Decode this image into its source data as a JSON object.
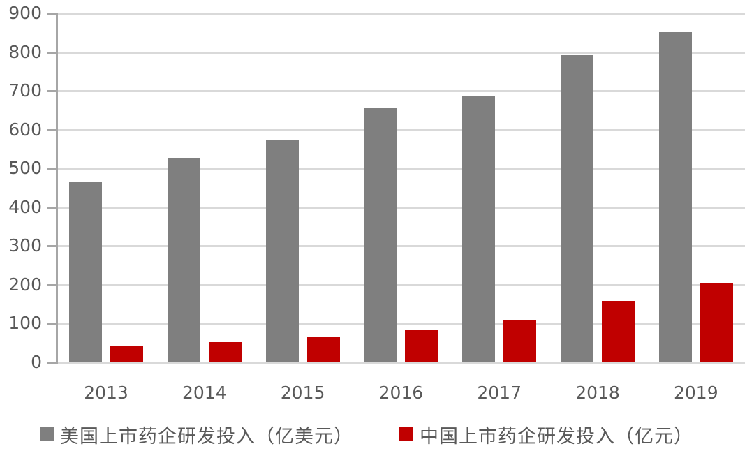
{
  "chart_data": {
    "type": "bar",
    "title": "",
    "xlabel": "",
    "ylabel": "",
    "categories": [
      "2013",
      "2014",
      "2015",
      "2016",
      "2017",
      "2018",
      "2019"
    ],
    "series": [
      {
        "name": "美国上市药企研发投入（亿美元）",
        "color": "#7f7f7f",
        "values": [
          466,
          528,
          575,
          655,
          685,
          792,
          851
        ]
      },
      {
        "name": "中国上市药企研发投入（亿元）",
        "color": "#c00000",
        "values": [
          43,
          52,
          64,
          82,
          109,
          159,
          205
        ]
      }
    ],
    "ylim": [
      0,
      900
    ],
    "yticks": [
      "0",
      "100",
      "200",
      "300",
      "400",
      "500",
      "600",
      "700",
      "800",
      "900"
    ],
    "grid": true,
    "legend_position": "bottom"
  },
  "legend": {
    "items": [
      {
        "label": "美国上市药企研发投入（亿美元）",
        "color": "#7f7f7f"
      },
      {
        "label": "中国上市药企研发投入（亿元）",
        "color": "#c00000"
      }
    ]
  }
}
